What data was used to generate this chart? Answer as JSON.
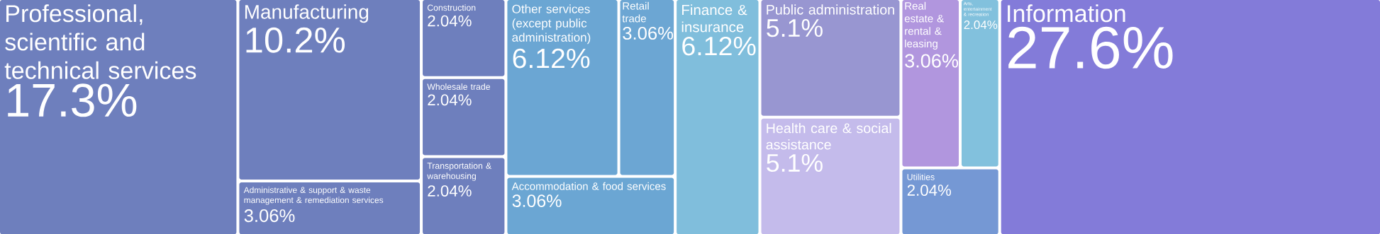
{
  "chart_data": {
    "type": "other",
    "categories": [
      "Professional, scientific and technical services",
      "Manufacturing",
      "Administrative & support & waste management & remediation services",
      "Construction",
      "Wholesale trade",
      "Transportation & warehousing",
      "Other services (except public administration)",
      "Retail trade",
      "Accommodation & food services",
      "Finance & insurance",
      "Public administration",
      "Health care & social assistance",
      "Real estate & rental & leasing",
      "Arts, entertainment & recreation",
      "Utilities",
      "Information"
    ],
    "values": [
      17.3,
      10.2,
      3.06,
      2.04,
      2.04,
      2.04,
      6.12,
      3.06,
      3.06,
      6.12,
      5.1,
      5.1,
      3.06,
      2.04,
      2.04,
      27.6
    ],
    "value_labels": [
      "17.3%",
      "10.2%",
      "3.06%",
      "2.04%",
      "2.04%",
      "2.04%",
      "6.12%",
      "3.06%",
      "3.06%",
      "6.12%",
      "5.1%",
      "5.1%",
      "3.06%",
      "2.04%",
      "2.04%",
      "27.6%"
    ],
    "colors": [
      "#6e7fbd",
      "#6e7fbd",
      "#6e7fbd",
      "#6e7fbd",
      "#6e7fbd",
      "#6e7fbd",
      "#6ba6d3",
      "#6ca6d3",
      "#6ba6d3",
      "#80bedc",
      "#9896d1",
      "#c4bbeb",
      "#b196de",
      "#82c1dd",
      "#7598d4",
      "#837bd9"
    ]
  }
}
